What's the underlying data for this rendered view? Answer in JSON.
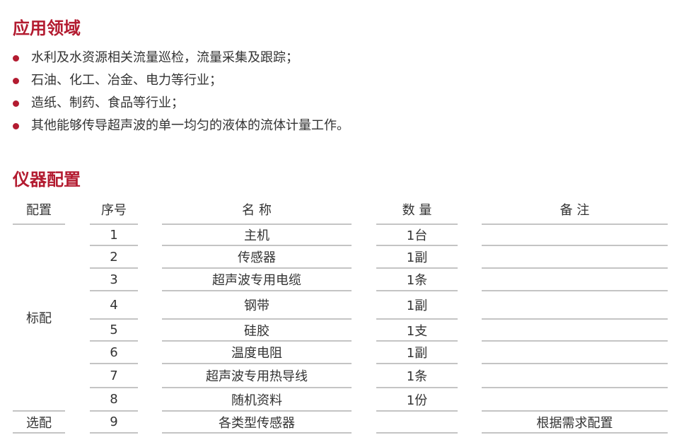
{
  "applications": {
    "title": "应用领域",
    "items": [
      "水利及水资源相关流量巡检，流量采集及跟踪；",
      "石油、化工、冶金、电力等行业；",
      "造纸、制药、食品等行业；",
      "其他能够传导超声波的单一均匀的液体的流体计量工作。"
    ]
  },
  "configuration": {
    "title": "仪器配置",
    "headers": [
      "配置",
      "序号",
      "名 称",
      "数 量",
      "备 注"
    ],
    "groups": [
      {
        "label": "标配",
        "rows": [
          {
            "no": "1",
            "name": "主机",
            "qty": "1台",
            "note": ""
          },
          {
            "no": "2",
            "name": "传感器",
            "qty": "1副",
            "note": ""
          },
          {
            "no": "3",
            "name": "超声波专用电缆",
            "qty": "1条",
            "note": ""
          },
          {
            "no": "4",
            "name": "钢带",
            "qty": "1副",
            "note": ""
          },
          {
            "no": "5",
            "name": "硅胶",
            "qty": "1支",
            "note": ""
          },
          {
            "no": "6",
            "name": "温度电阻",
            "qty": "1副",
            "note": ""
          },
          {
            "no": "7",
            "name": "超声波专用热导线",
            "qty": "1条",
            "note": ""
          },
          {
            "no": "8",
            "name": "随机资料",
            "qty": "1份",
            "note": ""
          }
        ]
      },
      {
        "label": "选配",
        "rows": [
          {
            "no": "9",
            "name": "各类型传感器",
            "qty": "",
            "note": "根据需求配置"
          }
        ]
      }
    ]
  },
  "colors": {
    "accent": "#b31b30",
    "text": "#333333",
    "rule": "#c4c4c4"
  }
}
